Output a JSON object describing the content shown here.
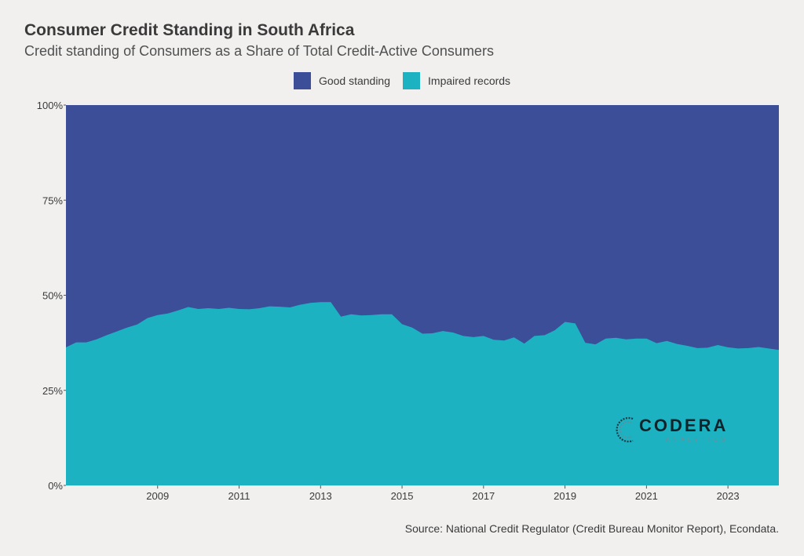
{
  "title": "Consumer Credit Standing in South Africa",
  "subtitle": "Credit standing of Consumers as a Share of Total Credit-Active Consumers",
  "source": "Source: National Credit Regulator (Credit Bureau Monitor Report), Econdata.",
  "logo": {
    "name": "CODERA",
    "tagline": "ANALYTICS"
  },
  "colors": {
    "good": "#3c4e98",
    "impaired": "#1db2c2",
    "background": "#f1f0ef"
  },
  "chart_data": {
    "type": "area",
    "stacked": true,
    "percent": true,
    "legend_position": "top-center",
    "grid": false,
    "y_ticks": [
      "0%",
      "25%",
      "50%",
      "75%",
      "100%"
    ],
    "x_ticks": [
      "2009",
      "2011",
      "2013",
      "2015",
      "2017",
      "2019",
      "2021",
      "2023"
    ],
    "ylim": [
      0,
      100
    ],
    "xlim": [
      2007.25,
      2024.75
    ],
    "series": [
      {
        "name": "Good standing",
        "color": "#3c4e98"
      },
      {
        "name": "Impaired records",
        "color": "#1db2c2"
      }
    ],
    "impaired_share": {
      "x": [
        2007.25,
        2007.5,
        2007.75,
        2008.0,
        2008.25,
        2008.5,
        2008.75,
        2009.0,
        2009.25,
        2009.5,
        2009.75,
        2010.0,
        2010.25,
        2010.5,
        2010.75,
        2011.0,
        2011.25,
        2011.5,
        2011.75,
        2012.0,
        2012.25,
        2012.5,
        2012.75,
        2013.0,
        2013.25,
        2013.5,
        2013.75,
        2014.0,
        2014.25,
        2014.5,
        2014.75,
        2015.0,
        2015.25,
        2015.5,
        2015.75,
        2016.0,
        2016.25,
        2016.5,
        2016.75,
        2017.0,
        2017.25,
        2017.5,
        2017.75,
        2018.0,
        2018.25,
        2018.5,
        2018.75,
        2019.0,
        2019.25,
        2019.5,
        2019.75,
        2020.0,
        2020.25,
        2020.5,
        2020.75,
        2021.0,
        2021.25,
        2021.5,
        2021.75,
        2022.0,
        2022.25,
        2022.5,
        2022.75,
        2023.0,
        2023.25,
        2023.5,
        2023.75,
        2024.0,
        2024.25,
        2024.5,
        2024.75
      ],
      "y": [
        36.3,
        37.6,
        37.6,
        38.4,
        39.5,
        40.5,
        41.5,
        42.3,
        44.0,
        44.8,
        45.2,
        46.0,
        46.9,
        46.4,
        46.6,
        46.4,
        46.7,
        46.4,
        46.3,
        46.6,
        47.1,
        47.0,
        46.8,
        47.5,
        48.0,
        48.2,
        48.2,
        44.4,
        45.0,
        44.7,
        44.8,
        45.0,
        45.0,
        42.4,
        41.5,
        39.9,
        40.0,
        40.6,
        40.2,
        39.3,
        39.0,
        39.3,
        38.3,
        38.1,
        38.9,
        37.3,
        39.3,
        39.5,
        40.8,
        43.0,
        42.6,
        37.5,
        37.1,
        38.6,
        38.8,
        38.4,
        38.6,
        38.6,
        37.4,
        38.0,
        37.2,
        36.7,
        36.1,
        36.2,
        36.9,
        36.3,
        36.0,
        36.1,
        36.4,
        36.0,
        35.6
      ]
    }
  }
}
